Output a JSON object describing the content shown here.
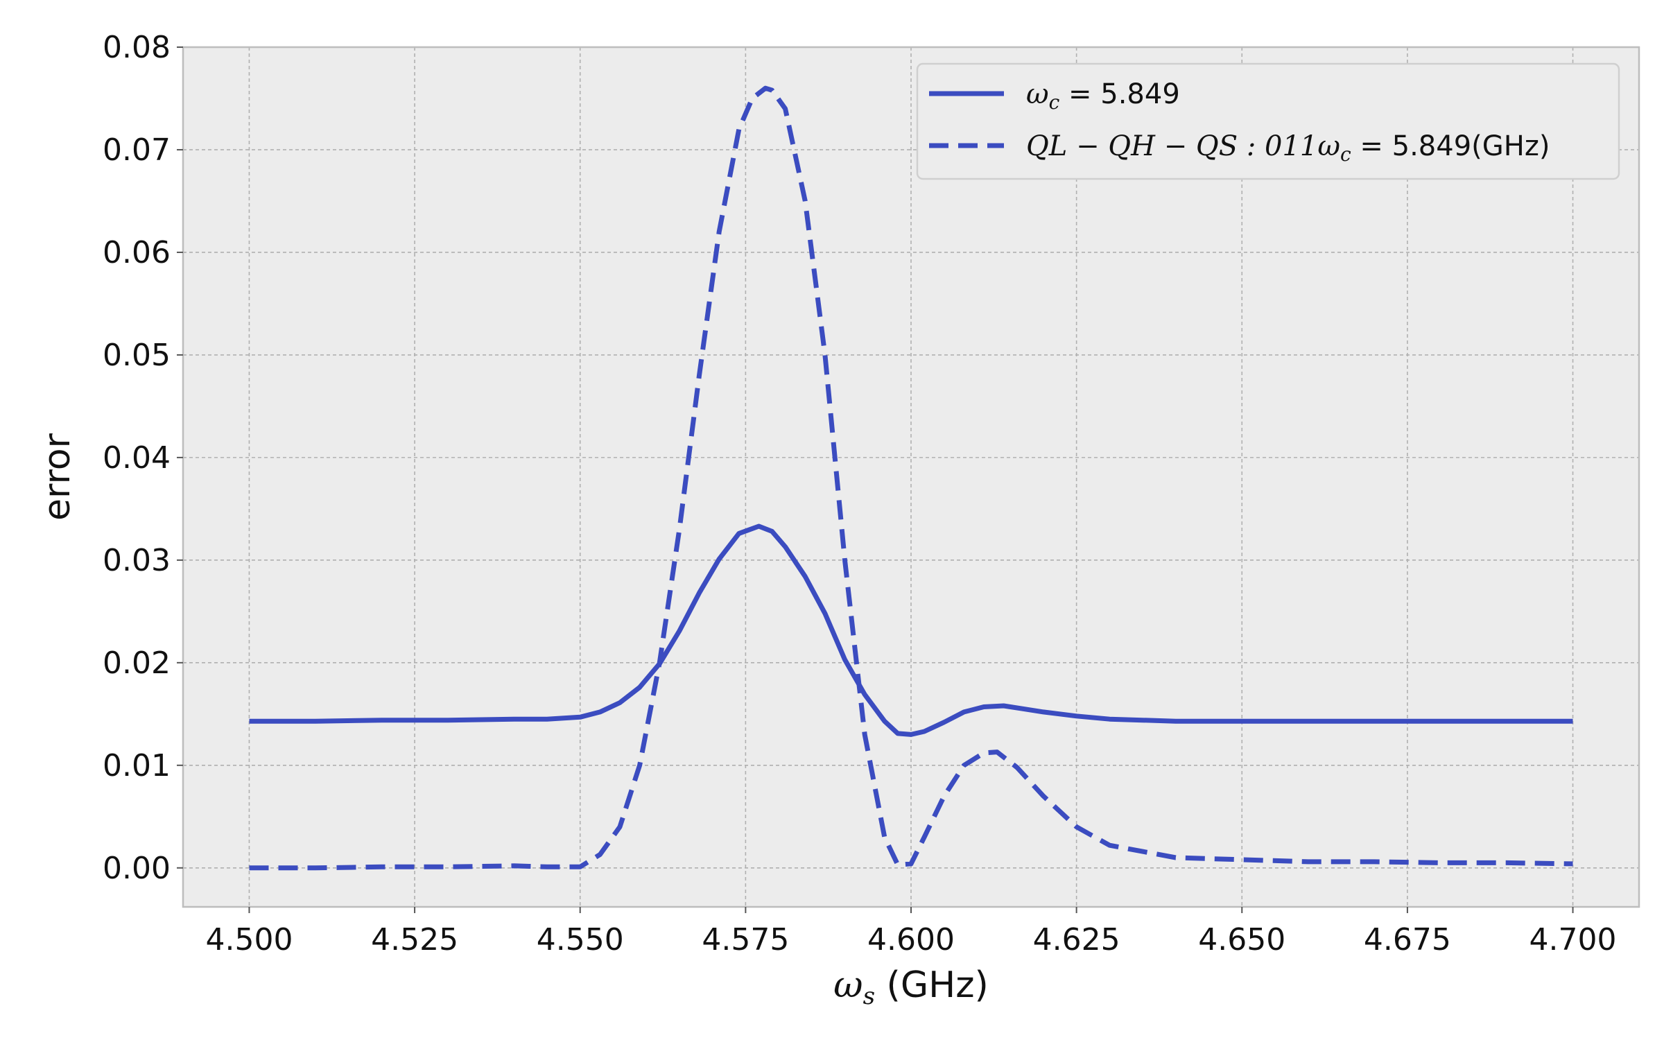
{
  "chart_data": {
    "type": "line",
    "title": "",
    "xlabel": {
      "symbol": "ω",
      "sub": "s",
      "unit": " (GHz)"
    },
    "ylabel": "error",
    "xlim": [
      4.49,
      4.71
    ],
    "ylim": [
      -0.0038,
      0.08
    ],
    "grid": true,
    "legend_position": "top-right",
    "x_ticks": [
      "4.500",
      "4.525",
      "4.550",
      "4.575",
      "4.600",
      "4.625",
      "4.650",
      "4.675",
      "4.700"
    ],
    "y_ticks": [
      "0.00",
      "0.01",
      "0.02",
      "0.03",
      "0.04",
      "0.05",
      "0.06",
      "0.07",
      "0.08"
    ],
    "colors": {
      "series": "#3b4cc0",
      "plot_bg": "#ececec",
      "grid": "#b0b0b0"
    },
    "legend": [
      {
        "math": "ω",
        "sub": "c",
        "text": " = 5.849"
      },
      {
        "math": "QL − QH − QS : 011ω",
        "sub": "c",
        "text": " = 5.849(GHz)"
      }
    ],
    "series": [
      {
        "style": "solid",
        "x": [
          4.5,
          4.51,
          4.52,
          4.53,
          4.54,
          4.545,
          4.55,
          4.553,
          4.556,
          4.559,
          4.562,
          4.565,
          4.568,
          4.571,
          4.574,
          4.577,
          4.579,
          4.581,
          4.584,
          4.587,
          4.59,
          4.593,
          4.596,
          4.598,
          4.6,
          4.602,
          4.605,
          4.608,
          4.611,
          4.614,
          4.617,
          4.62,
          4.625,
          4.63,
          4.64,
          4.65,
          4.66,
          4.67,
          4.68,
          4.69,
          4.7
        ],
        "y": [
          0.0143,
          0.0143,
          0.0144,
          0.0144,
          0.0145,
          0.0145,
          0.0147,
          0.0152,
          0.0161,
          0.0176,
          0.0199,
          0.0231,
          0.0268,
          0.0301,
          0.0326,
          0.0333,
          0.0328,
          0.0313,
          0.0284,
          0.0248,
          0.0203,
          0.0169,
          0.0143,
          0.0131,
          0.013,
          0.0133,
          0.0142,
          0.0152,
          0.0157,
          0.0158,
          0.0155,
          0.0152,
          0.0148,
          0.0145,
          0.0143,
          0.0143,
          0.0143,
          0.0143,
          0.0143,
          0.0143,
          0.0143
        ]
      },
      {
        "style": "dashed",
        "x": [
          4.5,
          4.51,
          4.52,
          4.53,
          4.54,
          4.545,
          4.55,
          4.553,
          4.556,
          4.559,
          4.562,
          4.565,
          4.568,
          4.571,
          4.574,
          4.576,
          4.578,
          4.579,
          4.581,
          4.584,
          4.587,
          4.59,
          4.593,
          4.596,
          4.598,
          4.6,
          4.602,
          4.605,
          4.608,
          4.611,
          4.613,
          4.616,
          4.62,
          4.625,
          4.63,
          4.64,
          4.65,
          4.66,
          4.67,
          4.68,
          4.69,
          4.7
        ],
        "y": [
          0.0,
          0.0,
          0.0001,
          0.0001,
          0.0002,
          0.0001,
          0.0001,
          0.0013,
          0.004,
          0.01,
          0.02,
          0.033,
          0.048,
          0.062,
          0.072,
          0.075,
          0.076,
          0.0758,
          0.074,
          0.065,
          0.05,
          0.03,
          0.013,
          0.003,
          0.0003,
          0.0004,
          0.003,
          0.007,
          0.01,
          0.0112,
          0.0113,
          0.0098,
          0.007,
          0.004,
          0.0022,
          0.001,
          0.0008,
          0.0006,
          0.0006,
          0.0005,
          0.0005,
          0.0004
        ]
      }
    ]
  }
}
